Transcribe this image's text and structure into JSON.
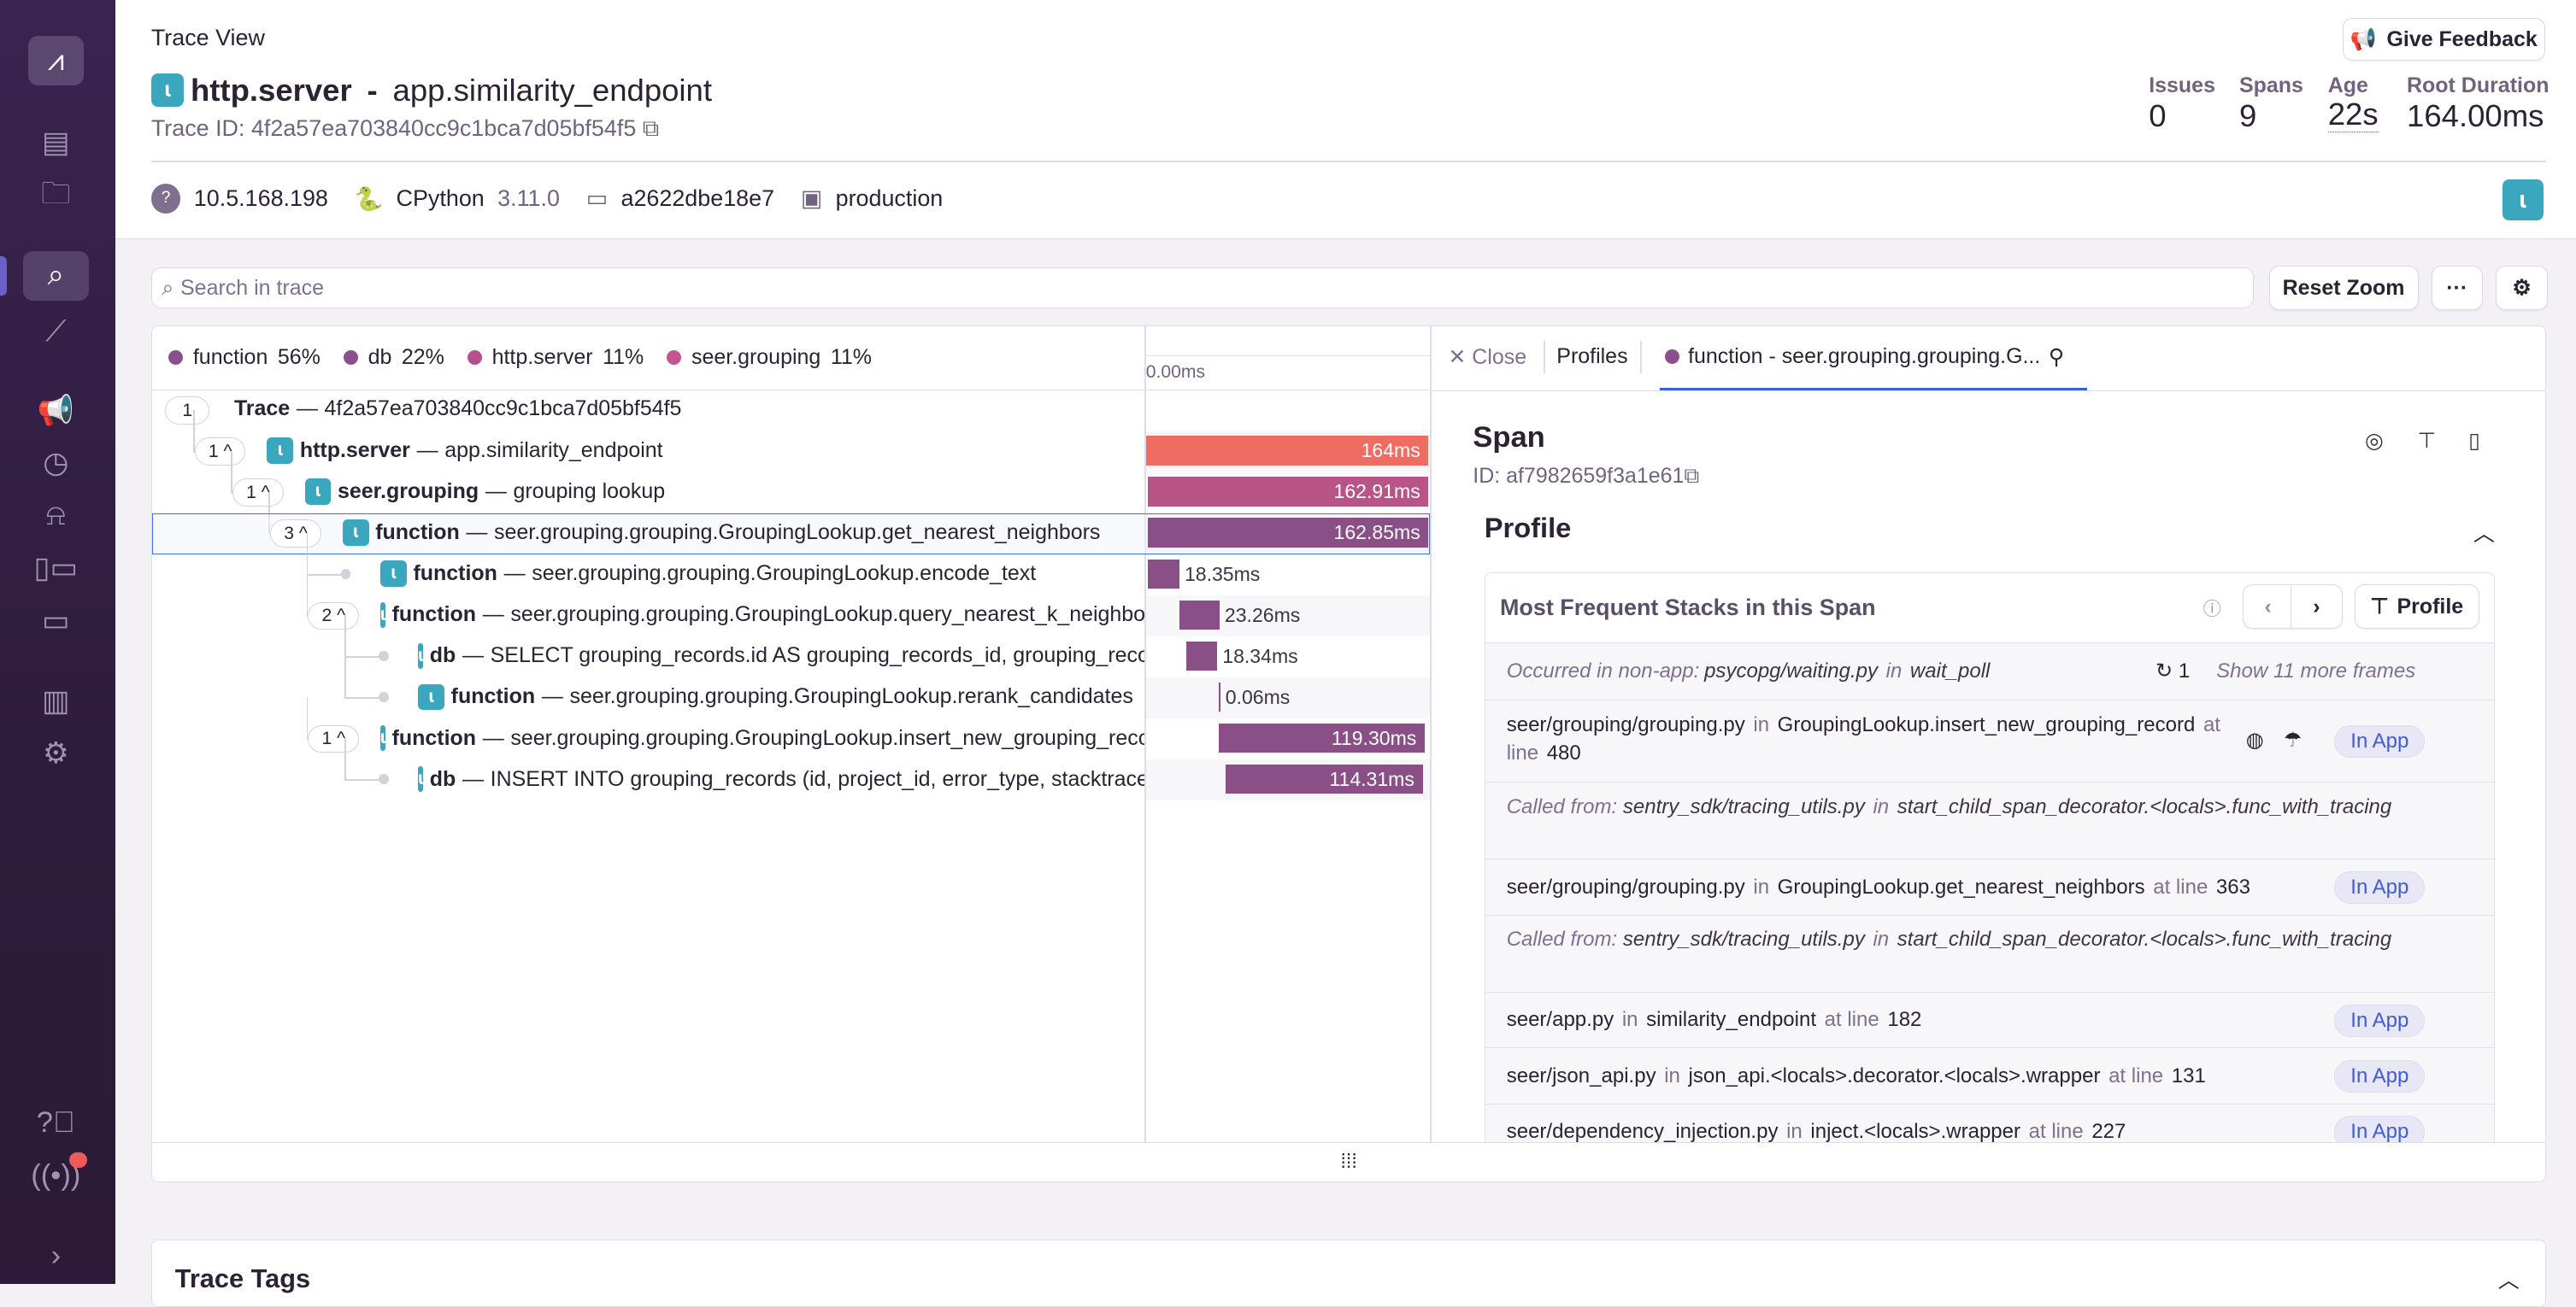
{
  "sidebar": {
    "items": [
      {
        "name": "sentry-logo-icon"
      },
      {
        "name": "issues-icon"
      },
      {
        "name": "projects-icon"
      },
      {
        "name": "explore-icon",
        "active": true
      },
      {
        "name": "performance-icon"
      },
      {
        "name": "feedback-icon"
      },
      {
        "name": "releases-icon"
      },
      {
        "name": "alerts-icon"
      },
      {
        "name": "dashboards-icon"
      },
      {
        "name": "stats-icon"
      },
      {
        "name": "reports-icon"
      },
      {
        "name": "settings-icon"
      },
      {
        "name": "help-icon"
      },
      {
        "name": "broadcasts-icon"
      },
      {
        "name": "collapse-icon"
      }
    ],
    "accent": "#3a2450"
  },
  "header": {
    "breadcrumb": "Trace View",
    "title_op": "http.server",
    "title_sep": " - ",
    "title_desc": "app.similarity_endpoint",
    "trace_id_label": "Trace ID: 4f2a57ea703840cc9c1bca7d05bf54f5",
    "feedback_label": "Give Feedback",
    "stats": [
      {
        "label": "Issues",
        "value": "0"
      },
      {
        "label": "Spans",
        "value": "9"
      },
      {
        "label": "Age",
        "value": "22s"
      },
      {
        "label": "Root Duration",
        "value": "164.00ms"
      }
    ],
    "meta": {
      "ip": "10.5.168.198",
      "runtime": "CPython",
      "runtime_version": "3.11.0",
      "release": "a2622dbe18e7",
      "environment": "production"
    }
  },
  "toolbar": {
    "search_placeholder": "Search in trace",
    "reset_zoom": "Reset Zoom",
    "more": "···"
  },
  "legend": [
    {
      "label": "function",
      "pct": "56%",
      "color": "#8a4f8d"
    },
    {
      "label": "db",
      "pct": "22%",
      "color": "#8a4f8d"
    },
    {
      "label": "http.server",
      "pct": "11%",
      "color": "#b5508a"
    },
    {
      "label": "seer.grouping",
      "pct": "11%",
      "color": "#c25490"
    }
  ],
  "timeline": {
    "start_label": "0.00ms",
    "total_ms": 164
  },
  "spans": [
    {
      "level": 0,
      "count": "1",
      "chev": false,
      "op": "Trace",
      "desc": "4f2a57ea703840cc9c1bca7d05bf54f5",
      "icon": false,
      "start_ms": null,
      "dur": null,
      "color": null
    },
    {
      "level": 1,
      "count": "1",
      "chev": true,
      "op": "http.server",
      "desc": "app.similarity_endpoint",
      "icon": true,
      "start_ms": 0,
      "dur": 164,
      "label": "164ms",
      "color": "#ef6c63"
    },
    {
      "level": 2,
      "count": "1",
      "chev": true,
      "op": "seer.grouping",
      "desc": "grouping lookup",
      "icon": true,
      "start_ms": 1.1,
      "dur": 162.91,
      "label": "162.91ms",
      "color": "#b85586"
    },
    {
      "level": 3,
      "count": "3",
      "chev": true,
      "op": "function",
      "desc": "seer.grouping.grouping.GroupingLookup.get_nearest_neighbors",
      "icon": true,
      "start_ms": 1.15,
      "dur": 162.85,
      "label": "162.85ms",
      "color": "#894f86",
      "selected": true
    },
    {
      "level": 4,
      "count": null,
      "chev": false,
      "op": "function",
      "desc": "seer.grouping.grouping.GroupingLookup.encode_text",
      "icon": true,
      "start_ms": 1.2,
      "dur": 18.35,
      "label": "18.35ms",
      "color": "#894f86"
    },
    {
      "level": 4,
      "count": "2",
      "chev": true,
      "op": "function",
      "desc": "seer.grouping.grouping.GroupingLookup.query_nearest_k_neighbors",
      "icon": true,
      "start_ms": 19.6,
      "dur": 23.26,
      "label": "23.26ms",
      "color": "#894f86"
    },
    {
      "level": 5,
      "count": null,
      "chev": false,
      "op": "db",
      "desc": "SELECT grouping_records.id AS grouping_records_id, grouping_records_project_id",
      "icon": true,
      "start_ms": 23.2,
      "dur": 18.34,
      "label": "18.34ms",
      "color": "#894f86"
    },
    {
      "level": 5,
      "count": null,
      "chev": false,
      "op": "function",
      "desc": "seer.grouping.grouping.GroupingLookup.rerank_candidates",
      "icon": true,
      "start_ms": 42.3,
      "dur": 0.06,
      "label": "0.06ms",
      "color": "#894f86"
    },
    {
      "level": 4,
      "count": "1",
      "chev": true,
      "op": "function",
      "desc": "seer.grouping.grouping.GroupingLookup.insert_new_grouping_record",
      "icon": true,
      "start_ms": 42.5,
      "dur": 119.3,
      "label": "119.30ms",
      "color": "#894f86"
    },
    {
      "level": 5,
      "count": null,
      "chev": false,
      "op": "db",
      "desc": "INSERT INTO grouping_records (id, project_id, error_type, stacktrace_hash)",
      "icon": true,
      "start_ms": 46.3,
      "dur": 114.31,
      "label": "114.31ms",
      "color": "#894f86"
    }
  ],
  "drawer": {
    "close": "Close",
    "profiles_tab": "Profiles",
    "active_tab": "function - seer.grouping.grouping.G...",
    "span_title": "Span",
    "span_id": "ID: af7982659f3a1e61",
    "profile_heading": "Profile",
    "stacks_title": "Most Frequent Stacks in this Span",
    "profile_button": "Profile",
    "occurred": {
      "prefix": "Occurred in non-app:",
      "file": "psycopg/waiting.py",
      "in": "in",
      "func": "wait_poll",
      "count": "1",
      "show_more": "Show 11 more frames"
    },
    "frames": [
      {
        "type": "frame",
        "file": "seer/grouping/grouping.py",
        "func": "GroupingLookup.insert_new_grouping_record",
        "line": "480",
        "wrap": true,
        "links": true,
        "badge": "In App"
      },
      {
        "type": "called",
        "prefix": "Called from:",
        "text": "sentry_sdk/tracing_utils.py",
        "in": "in",
        "func": "start_child_span_decorator.<locals>.func_with_tracing"
      },
      {
        "type": "frame",
        "file": "seer/grouping/grouping.py",
        "func": "GroupingLookup.get_nearest_neighbors",
        "line": "363",
        "badge": "In App"
      },
      {
        "type": "called",
        "prefix": "Called from:",
        "text": "sentry_sdk/tracing_utils.py",
        "in": "in",
        "func": "start_child_span_decorator.<locals>.func_with_tracing"
      },
      {
        "type": "frame",
        "file": "seer/app.py",
        "func": "similarity_endpoint",
        "line": "182",
        "badge": "In App"
      },
      {
        "type": "frame",
        "file": "seer/json_api.py",
        "func": "json_api.<locals>.decorator.<locals>.wrapper",
        "line": "131",
        "badge": "In App"
      },
      {
        "type": "frame",
        "file": "seer/dependency_injection.py",
        "func": "inject.<locals>.wrapper",
        "line": "227",
        "badge": "In App"
      }
    ],
    "in_word": "in",
    "at_line": "at line"
  },
  "trace_tags": {
    "title": "Trace Tags"
  }
}
